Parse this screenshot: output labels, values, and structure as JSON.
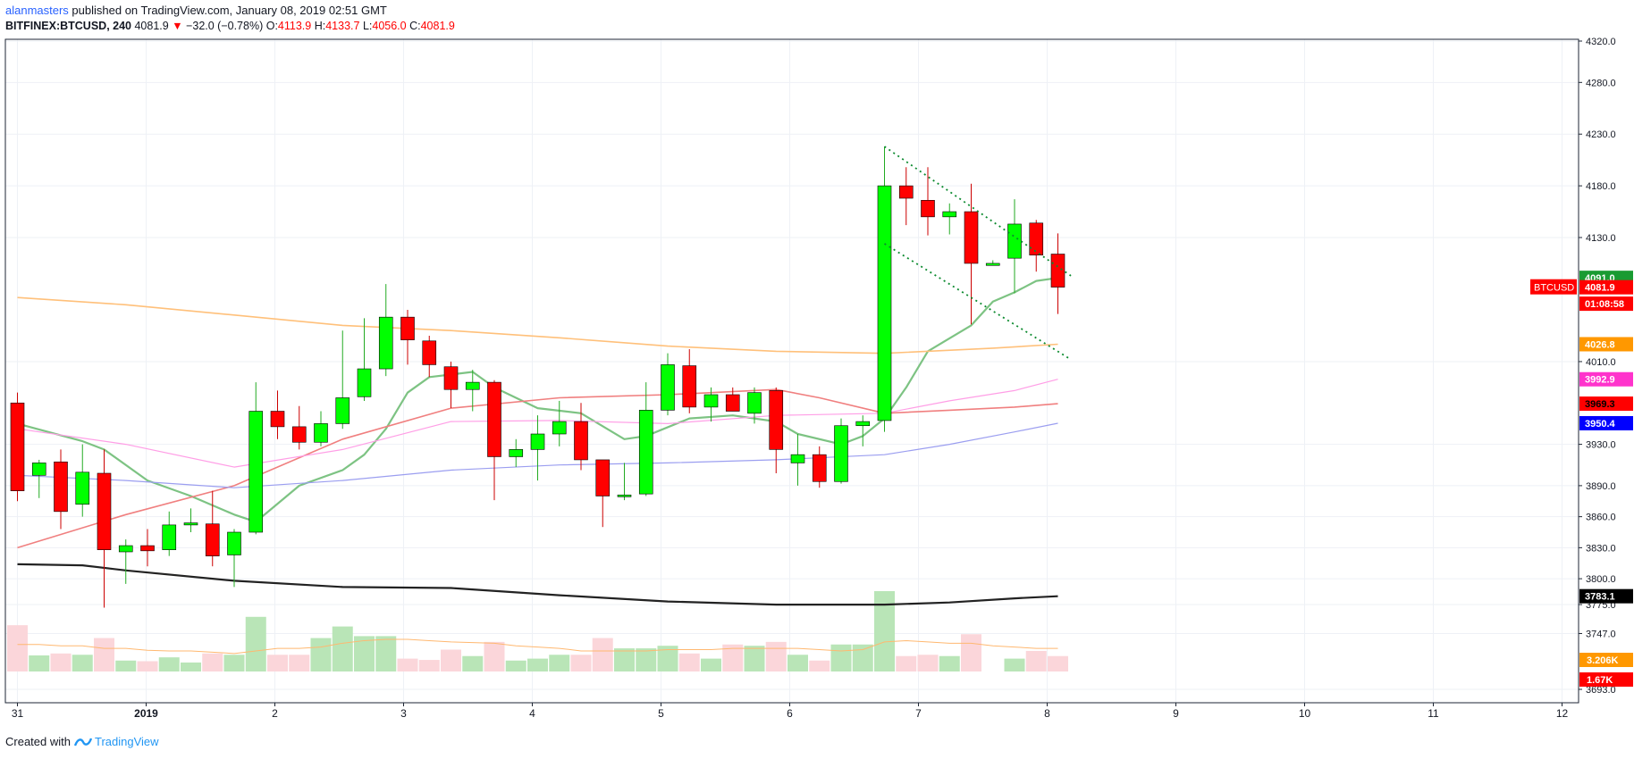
{
  "header": {
    "user": "alanmasters",
    "published": " published on TradingView.com, January 08, 2019 02:51 GMT",
    "symbol": "BITFINEX:BTCUSD, 240",
    "last": "4081.9",
    "arrow": "▼",
    "change": "−32.0 (−0.78%)",
    "o_label": "O:",
    "o": "4113.9",
    "h_label": "H:",
    "h": "4133.7",
    "l_label": "L:",
    "l": "4056.0",
    "c_label": "C:",
    "c": "4081.9"
  },
  "footer": {
    "created": "Created with",
    "brand": "TradingView"
  },
  "colors": {
    "up": "#00ff00",
    "down": "#ff0000",
    "ema_fast": "#7dc383",
    "ma_orange": "#ffc07a",
    "ma_red": "#f07f7f",
    "ma_pink": "#ff9ee6",
    "ma_blue": "#9b9ef0",
    "ma_black": "#222222"
  },
  "chart_data": {
    "type": "candlestick",
    "price_axis": {
      "ticks": [
        "4320.0",
        "4280.0",
        "4230.0",
        "4180.0",
        "4130.0",
        "4010.0",
        "3930.0",
        "3890.0",
        "3860.0",
        "3830.0",
        "3800.0",
        "3775.0",
        "3747.0",
        "3693.0"
      ]
    },
    "time_axis": {
      "labels": [
        "31",
        "2019",
        "2",
        "3",
        "4",
        "5",
        "6",
        "7",
        "8",
        "9",
        "10",
        "11",
        "12"
      ]
    },
    "candles": [
      {
        "o": 3970,
        "h": 3980,
        "l": 3875,
        "c": 3885
      },
      {
        "o": 3900,
        "h": 3915,
        "l": 3878,
        "c": 3912
      },
      {
        "o": 3913,
        "h": 3925,
        "l": 3848,
        "c": 3865
      },
      {
        "o": 3872,
        "h": 3930,
        "l": 3860,
        "c": 3903
      },
      {
        "o": 3902,
        "h": 3925,
        "l": 3772,
        "c": 3828
      },
      {
        "o": 3826,
        "h": 3838,
        "l": 3795,
        "c": 3832
      },
      {
        "o": 3832,
        "h": 3848,
        "l": 3812,
        "c": 3827
      },
      {
        "o": 3828,
        "h": 3865,
        "l": 3822,
        "c": 3852
      },
      {
        "o": 3852,
        "h": 3868,
        "l": 3845,
        "c": 3854
      },
      {
        "o": 3853,
        "h": 3885,
        "l": 3812,
        "c": 3822
      },
      {
        "o": 3823,
        "h": 3848,
        "l": 3792,
        "c": 3845
      },
      {
        "o": 3845,
        "h": 3990,
        "l": 3843,
        "c": 3962
      },
      {
        "o": 3962,
        "h": 3982,
        "l": 3935,
        "c": 3947
      },
      {
        "o": 3947,
        "h": 3967,
        "l": 3925,
        "c": 3932
      },
      {
        "o": 3932,
        "h": 3962,
        "l": 3928,
        "c": 3950
      },
      {
        "o": 3950,
        "h": 4040,
        "l": 3945,
        "c": 3975
      },
      {
        "o": 3976,
        "h": 4052,
        "l": 3972,
        "c": 4003
      },
      {
        "o": 4003,
        "h": 4085,
        "l": 3996,
        "c": 4053
      },
      {
        "o": 4053,
        "h": 4060,
        "l": 4007,
        "c": 4031
      },
      {
        "o": 4030,
        "h": 4035,
        "l": 3995,
        "c": 4007
      },
      {
        "o": 4005,
        "h": 4010,
        "l": 3965,
        "c": 3983
      },
      {
        "o": 3983,
        "h": 4002,
        "l": 3962,
        "c": 3990
      },
      {
        "o": 3990,
        "h": 3992,
        "l": 3876,
        "c": 3918
      },
      {
        "o": 3918,
        "h": 3935,
        "l": 3908,
        "c": 3925
      },
      {
        "o": 3925,
        "h": 3958,
        "l": 3895,
        "c": 3940
      },
      {
        "o": 3940,
        "h": 3972,
        "l": 3928,
        "c": 3952
      },
      {
        "o": 3952,
        "h": 3970,
        "l": 3905,
        "c": 3915
      },
      {
        "o": 3915,
        "h": 3915,
        "l": 3850,
        "c": 3880
      },
      {
        "o": 3880,
        "h": 3912,
        "l": 3876,
        "c": 3881
      },
      {
        "o": 3882,
        "h": 3990,
        "l": 3880,
        "c": 3963
      },
      {
        "o": 3963,
        "h": 4018,
        "l": 3958,
        "c": 4007
      },
      {
        "o": 4006,
        "h": 4022,
        "l": 3960,
        "c": 3966
      },
      {
        "o": 3966,
        "h": 3985,
        "l": 3952,
        "c": 3978
      },
      {
        "o": 3978,
        "h": 3985,
        "l": 3962,
        "c": 3962
      },
      {
        "o": 3960,
        "h": 3985,
        "l": 3950,
        "c": 3980
      },
      {
        "o": 3982,
        "h": 3985,
        "l": 3902,
        "c": 3925
      },
      {
        "o": 3912,
        "h": 3940,
        "l": 3890,
        "c": 3920
      },
      {
        "o": 3920,
        "h": 3928,
        "l": 3888,
        "c": 3894
      },
      {
        "o": 3894,
        "h": 3955,
        "l": 3892,
        "c": 3948
      },
      {
        "o": 3948,
        "h": 3958,
        "l": 3928,
        "c": 3952
      },
      {
        "o": 3953,
        "h": 4218,
        "l": 3942,
        "c": 4180
      },
      {
        "o": 4180,
        "h": 4198,
        "l": 4142,
        "c": 4168
      },
      {
        "o": 4166,
        "h": 4198,
        "l": 4132,
        "c": 4150
      },
      {
        "o": 4150,
        "h": 4163,
        "l": 4133,
        "c": 4155
      },
      {
        "o": 4155,
        "h": 4182,
        "l": 4046,
        "c": 4105
      },
      {
        "o": 4103,
        "h": 4108,
        "l": 4103,
        "c": 4105
      },
      {
        "o": 4110,
        "h": 4167,
        "l": 4076,
        "c": 4143
      },
      {
        "o": 4144,
        "h": 4147,
        "l": 4097,
        "c": 4113
      },
      {
        "o": 4114,
        "h": 4134,
        "l": 4056,
        "c": 4082
      }
    ],
    "volume": [
      {
        "v": 0.72,
        "up": false
      },
      {
        "v": 0.25,
        "up": true
      },
      {
        "v": 0.28,
        "up": false
      },
      {
        "v": 0.26,
        "up": true
      },
      {
        "v": 0.52,
        "up": false
      },
      {
        "v": 0.17,
        "up": true
      },
      {
        "v": 0.16,
        "up": false
      },
      {
        "v": 0.22,
        "up": true
      },
      {
        "v": 0.14,
        "up": true
      },
      {
        "v": 0.28,
        "up": false
      },
      {
        "v": 0.26,
        "up": true
      },
      {
        "v": 0.85,
        "up": true
      },
      {
        "v": 0.26,
        "up": false
      },
      {
        "v": 0.26,
        "up": false
      },
      {
        "v": 0.52,
        "up": true
      },
      {
        "v": 0.7,
        "up": true
      },
      {
        "v": 0.55,
        "up": true
      },
      {
        "v": 0.55,
        "up": true
      },
      {
        "v": 0.2,
        "up": false
      },
      {
        "v": 0.18,
        "up": false
      },
      {
        "v": 0.34,
        "up": false
      },
      {
        "v": 0.24,
        "up": true
      },
      {
        "v": 0.46,
        "up": false
      },
      {
        "v": 0.17,
        "up": true
      },
      {
        "v": 0.2,
        "up": true
      },
      {
        "v": 0.26,
        "up": true
      },
      {
        "v": 0.26,
        "up": false
      },
      {
        "v": 0.52,
        "up": false
      },
      {
        "v": 0.36,
        "up": true
      },
      {
        "v": 0.36,
        "up": true
      },
      {
        "v": 0.4,
        "up": true
      },
      {
        "v": 0.28,
        "up": false
      },
      {
        "v": 0.2,
        "up": true
      },
      {
        "v": 0.42,
        "up": false
      },
      {
        "v": 0.4,
        "up": true
      },
      {
        "v": 0.46,
        "up": false
      },
      {
        "v": 0.26,
        "up": true
      },
      {
        "v": 0.17,
        "up": false
      },
      {
        "v": 0.42,
        "up": true
      },
      {
        "v": 0.42,
        "up": true
      },
      {
        "v": 1.25,
        "up": true
      },
      {
        "v": 0.24,
        "up": false
      },
      {
        "v": 0.26,
        "up": false
      },
      {
        "v": 0.24,
        "up": true
      },
      {
        "v": 0.58,
        "up": false
      },
      {
        "v": 0.0,
        "up": false
      },
      {
        "v": 0.2,
        "up": true
      },
      {
        "v": 0.32,
        "up": false
      },
      {
        "v": 0.24,
        "up": false
      }
    ],
    "indicators": [
      {
        "name": "ema-fast",
        "color": "#7dc383",
        "width": 2.2,
        "points": [
          [
            0,
            3950
          ],
          [
            3,
            3933
          ],
          [
            4,
            3925
          ],
          [
            6,
            3895
          ],
          [
            8,
            3880
          ],
          [
            10,
            3862
          ],
          [
            11,
            3855
          ],
          [
            13,
            3890
          ],
          [
            15,
            3905
          ],
          [
            16,
            3920
          ],
          [
            17,
            3945
          ],
          [
            18,
            3980
          ],
          [
            19,
            3995
          ],
          [
            21,
            4000
          ],
          [
            22,
            3985
          ],
          [
            24,
            3965
          ],
          [
            26,
            3960
          ],
          [
            28,
            3935
          ],
          [
            29,
            3938
          ],
          [
            31,
            3955
          ],
          [
            33,
            3958
          ],
          [
            35,
            3952
          ],
          [
            36,
            3940
          ],
          [
            38,
            3930
          ],
          [
            39,
            3938
          ],
          [
            40,
            3955
          ],
          [
            41,
            3985
          ],
          [
            42,
            4020
          ],
          [
            44,
            4045
          ],
          [
            45,
            4068
          ],
          [
            46,
            4077
          ],
          [
            47,
            4088
          ],
          [
            48,
            4091
          ]
        ]
      },
      {
        "name": "ma-orange",
        "color": "#ffc07a",
        "width": 1.6,
        "points": [
          [
            0,
            4072
          ],
          [
            5,
            4065
          ],
          [
            10,
            4055
          ],
          [
            15,
            4045
          ],
          [
            20,
            4040
          ],
          [
            25,
            4033
          ],
          [
            30,
            4025
          ],
          [
            35,
            4020
          ],
          [
            40,
            4018
          ],
          [
            45,
            4023
          ],
          [
            48,
            4026.8
          ]
        ]
      },
      {
        "name": "ma-red",
        "color": "#f07f7f",
        "width": 1.6,
        "points": [
          [
            0,
            3830
          ],
          [
            5,
            3862
          ],
          [
            10,
            3890
          ],
          [
            15,
            3935
          ],
          [
            20,
            3965
          ],
          [
            25,
            3975
          ],
          [
            30,
            3978
          ],
          [
            35,
            3983
          ],
          [
            37,
            3975
          ],
          [
            40,
            3960
          ],
          [
            43,
            3963
          ],
          [
            46,
            3966
          ],
          [
            48,
            3969.3
          ]
        ]
      },
      {
        "name": "ma-pink",
        "color": "#ff9ee6",
        "width": 1.2,
        "points": [
          [
            0,
            3945
          ],
          [
            5,
            3930
          ],
          [
            10,
            3908
          ],
          [
            15,
            3925
          ],
          [
            20,
            3952
          ],
          [
            25,
            3953
          ],
          [
            30,
            3950
          ],
          [
            35,
            3958
          ],
          [
            40,
            3960
          ],
          [
            43,
            3972
          ],
          [
            46,
            3982
          ],
          [
            48,
            3992.9
          ]
        ]
      },
      {
        "name": "ma-blue",
        "color": "#9b9ef0",
        "width": 1.2,
        "points": [
          [
            0,
            3900
          ],
          [
            5,
            3895
          ],
          [
            10,
            3888
          ],
          [
            15,
            3895
          ],
          [
            20,
            3905
          ],
          [
            25,
            3910
          ],
          [
            30,
            3912
          ],
          [
            35,
            3915
          ],
          [
            40,
            3920
          ],
          [
            43,
            3930
          ],
          [
            46,
            3942
          ],
          [
            48,
            3950.4
          ]
        ]
      },
      {
        "name": "ma-black",
        "color": "#222222",
        "width": 2.2,
        "points": [
          [
            0,
            3814
          ],
          [
            3,
            3813
          ],
          [
            5,
            3808
          ],
          [
            10,
            3798
          ],
          [
            15,
            3792
          ],
          [
            20,
            3791
          ],
          [
            25,
            3784
          ],
          [
            30,
            3778
          ],
          [
            35,
            3775
          ],
          [
            40,
            3775
          ],
          [
            43,
            3777
          ],
          [
            46,
            3781
          ],
          [
            48,
            3783.1
          ]
        ]
      }
    ],
    "trendlines": [
      {
        "from": [
          40,
          4218
        ],
        "to": [
          48.6,
          4093
        ]
      },
      {
        "from": [
          40,
          4124
        ],
        "to": [
          48.6,
          4012
        ]
      }
    ],
    "price_labels": [
      {
        "text": "4091.0",
        "value": 4091.0,
        "bg": "#199b32",
        "fg": "#ffffff"
      },
      {
        "text": "4081.9",
        "value": 4081.9,
        "bg": "#ff0000",
        "fg": "#ffffff"
      },
      {
        "text": "01:08:58",
        "value": 4066,
        "bg": "#ff0000",
        "fg": "#ffffff"
      },
      {
        "text": "4026.8",
        "value": 4026.8,
        "bg": "#ff9800",
        "fg": "#ffffff"
      },
      {
        "text": "3992.9",
        "value": 3992.9,
        "bg": "#ff33cc",
        "fg": "#ffffff"
      },
      {
        "text": "3969.3",
        "value": 3969.3,
        "bg": "#ff0000",
        "fg": "#000000"
      },
      {
        "text": "3950.4",
        "value": 3950.4,
        "bg": "#0000ff",
        "fg": "#ffffff"
      },
      {
        "text": "3783.1",
        "value": 3783.1,
        "bg": "#000000",
        "fg": "#ffffff"
      }
    ],
    "volume_labels": [
      {
        "text": "3.206K",
        "bg": "#ff9800",
        "fg": "#ffffff"
      },
      {
        "text": "1.67K",
        "bg": "#ff0000",
        "fg": "#ffffff"
      }
    ],
    "symbol_tag": "BTCUSD"
  }
}
